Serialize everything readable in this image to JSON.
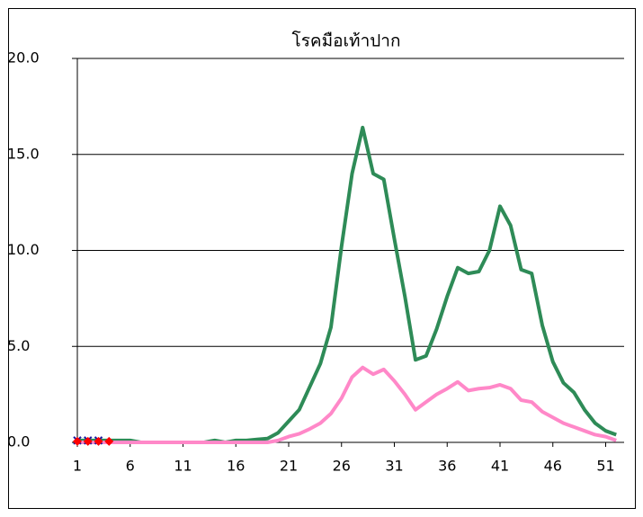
{
  "chart_data": {
    "type": "line",
    "title": "โรคมือเท้าปาก",
    "categories": [
      "1",
      null,
      null,
      null,
      null,
      "6",
      null,
      null,
      null,
      null,
      "11",
      null,
      null,
      null,
      null,
      "16",
      null,
      null,
      null,
      null,
      "21",
      null,
      null,
      null,
      null,
      "26",
      null,
      null,
      null,
      null,
      "31",
      null,
      null,
      null,
      null,
      "36",
      null,
      null,
      null,
      null,
      "41",
      null,
      null,
      null,
      null,
      "46",
      null,
      null,
      null,
      null,
      "51",
      null
    ],
    "series": [
      {
        "color": "#2e8b57",
        "marker": "none",
        "values": [
          0.1,
          0.1,
          0.1,
          0.1,
          0.1,
          0.1,
          0,
          0,
          0,
          0,
          0,
          0,
          0,
          0.1,
          0,
          0.1,
          0.1,
          0.15,
          0.2,
          0.5,
          1.1,
          1.7,
          2.9,
          4.1,
          6.0,
          10.2,
          14.0,
          16.4,
          14.0,
          13.7,
          10.6,
          7.6,
          4.3,
          4.5,
          5.9,
          7.6,
          9.1,
          8.8,
          8.9,
          10.0,
          12.3,
          11.3,
          9.0,
          8.8,
          6.1,
          4.2,
          3.1,
          2.6,
          1.7,
          1.0,
          0.6,
          0.4
        ]
      },
      {
        "color": "#ff88c8",
        "marker": "none",
        "values": [
          0,
          0,
          0,
          0,
          0,
          0,
          0,
          0,
          0,
          0,
          0,
          0,
          0,
          0,
          0,
          0,
          0,
          0,
          0,
          0.1,
          0.3,
          0.45,
          0.7,
          1.0,
          1.5,
          2.3,
          3.4,
          3.9,
          3.55,
          3.8,
          3.2,
          2.5,
          1.7,
          2.1,
          2.5,
          2.8,
          3.15,
          2.7,
          2.8,
          2.85,
          3.0,
          2.8,
          2.2,
          2.1,
          1.6,
          1.3,
          1.0,
          0.8,
          0.6,
          0.4,
          0.3,
          0.1
        ]
      },
      {
        "color": "#1a1aa0",
        "marker": "x",
        "values": [
          0.1,
          0.1,
          0.1,
          null,
          null,
          null,
          null,
          null,
          null,
          null,
          null,
          null,
          null,
          null,
          null,
          null,
          null,
          null,
          null,
          null,
          null,
          null,
          null,
          null,
          null,
          null,
          null,
          null,
          null,
          null,
          null,
          null,
          null,
          null,
          null,
          null,
          null,
          null,
          null,
          null,
          null,
          null,
          null,
          null,
          null,
          null,
          null,
          null,
          null,
          null,
          null,
          null
        ]
      },
      {
        "color": "#ff0000",
        "marker": "diamond",
        "values": [
          0.05,
          0.05,
          0.05,
          0.05,
          null,
          null,
          null,
          null,
          null,
          null,
          null,
          null,
          null,
          null,
          null,
          null,
          null,
          null,
          null,
          null,
          null,
          null,
          null,
          null,
          null,
          null,
          null,
          null,
          null,
          null,
          null,
          null,
          null,
          null,
          null,
          null,
          null,
          null,
          null,
          null,
          null,
          null,
          null,
          null,
          null,
          null,
          null,
          null,
          null,
          null,
          null,
          null
        ]
      }
    ],
    "ylim": [
      0,
      20
    ],
    "yticks": [
      {
        "value": 0,
        "label": "0.0"
      },
      {
        "value": 5,
        "label": "5.0"
      },
      {
        "value": 10,
        "label": "10.0"
      },
      {
        "value": 15,
        "label": "15.0"
      },
      {
        "value": 20,
        "label": "20.0"
      }
    ],
    "grid": true
  }
}
